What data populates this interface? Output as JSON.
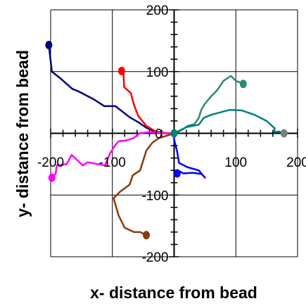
{
  "chart_data": {
    "type": "line",
    "title": "",
    "xlabel": "x- distance from bead",
    "ylabel": "y- distance from bead",
    "xlim": [
      -200,
      200
    ],
    "ylim": [
      -200,
      200
    ],
    "x_ticks": [
      -200,
      -100,
      0,
      100,
      200
    ],
    "y_ticks": [
      -200,
      -100,
      0,
      100,
      200
    ],
    "x_tick_labels": [
      "-200",
      "-100",
      "0",
      "100",
      "200"
    ],
    "y_tick_labels": [
      "-200",
      "-100",
      "0",
      "100",
      "200"
    ],
    "grid": true,
    "legend": "none",
    "series": [
      {
        "color": "#000080",
        "end": "start",
        "points": [
          [
            -203,
            143
          ],
          [
            -198,
            100
          ],
          [
            -183,
            88
          ],
          [
            -165,
            72
          ],
          [
            -155,
            68
          ],
          [
            -130,
            55
          ],
          [
            -113,
            44
          ],
          [
            -95,
            44
          ],
          [
            -72,
            26
          ],
          [
            -58,
            18
          ],
          [
            -45,
            9
          ],
          [
            -30,
            2
          ],
          [
            -15,
            0
          ],
          [
            0,
            0
          ]
        ]
      },
      {
        "color": "#ff0000",
        "end": "start",
        "points": [
          [
            -85,
            101
          ],
          [
            -82,
            98
          ],
          [
            -81,
            75
          ],
          [
            -70,
            65
          ],
          [
            -65,
            46
          ],
          [
            -58,
            28
          ],
          [
            -45,
            12
          ],
          [
            -30,
            3
          ],
          [
            -10,
            0
          ],
          [
            0,
            0
          ]
        ]
      },
      {
        "color": "#ff00ff",
        "end": "start",
        "points": [
          [
            -198,
            -72
          ],
          [
            -192,
            -66
          ],
          [
            -190,
            -52
          ],
          [
            -174,
            -50
          ],
          [
            -166,
            -35
          ],
          [
            -148,
            -52
          ],
          [
            -140,
            -47
          ],
          [
            -112,
            -52
          ],
          [
            -104,
            -33
          ],
          [
            -96,
            -20
          ],
          [
            -90,
            -13
          ],
          [
            -80,
            -12
          ],
          [
            -66,
            -8
          ],
          [
            -56,
            0
          ],
          [
            -40,
            2
          ],
          [
            -20,
            0
          ],
          [
            0,
            0
          ]
        ]
      },
      {
        "color": "#8b3a0f",
        "end": "start",
        "points": [
          [
            -45,
            -165
          ],
          [
            -55,
            -160
          ],
          [
            -65,
            -160
          ],
          [
            -80,
            -153
          ],
          [
            -90,
            -133
          ],
          [
            -98,
            -105
          ],
          [
            -88,
            -95
          ],
          [
            -72,
            -83
          ],
          [
            -67,
            -68
          ],
          [
            -55,
            -60
          ],
          [
            -45,
            -28
          ],
          [
            -35,
            -15
          ],
          [
            -25,
            -8
          ],
          [
            0,
            0
          ]
        ]
      },
      {
        "color": "#0000ff",
        "end": "start",
        "points": [
          [
            5,
            -65
          ],
          [
            10,
            -62
          ],
          [
            15,
            -65
          ],
          [
            30,
            -64
          ],
          [
            45,
            -66
          ],
          [
            50,
            -72
          ],
          [
            40,
            -60
          ],
          [
            22,
            -55
          ],
          [
            8,
            -48
          ],
          [
            5,
            -30
          ],
          [
            0,
            -10
          ],
          [
            0,
            0
          ]
        ]
      },
      {
        "color": "#2e8b69",
        "end": "start",
        "points": [
          [
            112,
            80
          ],
          [
            108,
            82
          ],
          [
            100,
            85
          ],
          [
            92,
            93
          ],
          [
            80,
            85
          ],
          [
            70,
            70
          ],
          [
            60,
            60
          ],
          [
            50,
            48
          ],
          [
            44,
            38
          ],
          [
            40,
            25
          ],
          [
            33,
            15
          ],
          [
            22,
            12
          ],
          [
            12,
            5
          ],
          [
            0,
            0
          ]
        ]
      },
      {
        "color": "#008080",
        "end": "start",
        "points": [
          [
            0,
            0
          ],
          [
            10,
            5
          ],
          [
            20,
            10
          ],
          [
            40,
            14
          ],
          [
            48,
            25
          ],
          [
            60,
            30
          ],
          [
            90,
            38
          ],
          [
            110,
            37
          ],
          [
            130,
            30
          ],
          [
            150,
            20
          ],
          [
            163,
            8
          ],
          [
            162,
            2
          ],
          [
            170,
            3
          ],
          [
            178,
            0
          ]
        ]
      },
      {
        "color": "#808080",
        "end": "start",
        "points": [
          [
            178,
            0
          ],
          [
            176,
            2
          ],
          [
            0,
            0
          ]
        ],
        "visible_portion": "marker-only"
      }
    ]
  }
}
